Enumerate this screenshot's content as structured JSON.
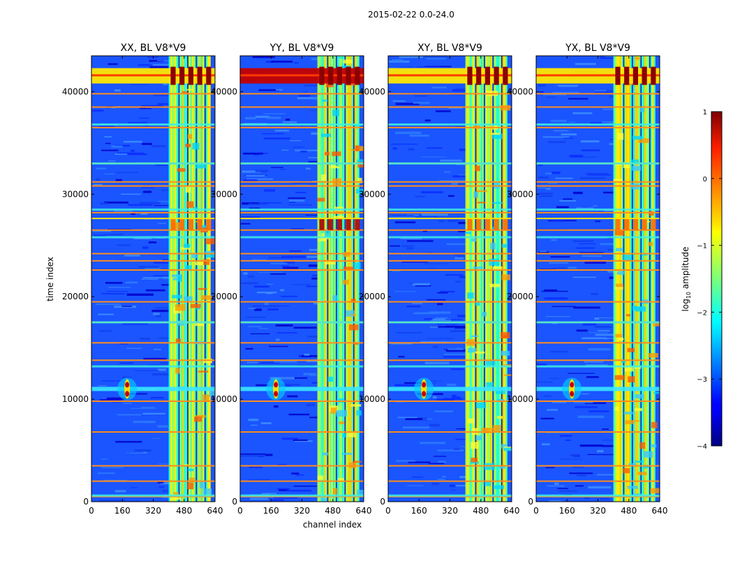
{
  "figure": {
    "suptitle": "2015-02-22 0.0-24.0"
  },
  "chart_data": {
    "type": "heatmap",
    "panels": [
      {
        "title": "XX, BL V8*V9",
        "polarization": "XX"
      },
      {
        "title": "YY, BL V8*V9",
        "polarization": "YY"
      },
      {
        "title": "XY, BL V8*V9",
        "polarization": "XY"
      },
      {
        "title": "YX, BL V8*V9",
        "polarization": "YX"
      }
    ],
    "xlabel": "channel index",
    "ylabel": "time index",
    "xlim": [
      0,
      640
    ],
    "ylim": [
      0,
      43500
    ],
    "xticks": [
      "0",
      "160",
      "320",
      "480",
      "640"
    ],
    "xtick_values": [
      0,
      160,
      320,
      480,
      640
    ],
    "yticks": [
      "0",
      "10000",
      "20000",
      "30000",
      "40000"
    ],
    "ytick_values": [
      0,
      10000,
      20000,
      30000,
      40000
    ],
    "colorbar": {
      "label": "log10 amplitude",
      "label_base": "log",
      "label_sub": "10",
      "label_rest": " amplitude",
      "range": [
        -4,
        1
      ],
      "ticks": [
        "1",
        "0",
        "−1",
        "−2",
        "−3",
        "−4"
      ],
      "tick_values": [
        1,
        0,
        -1,
        -2,
        -3,
        -4
      ],
      "colormap": "jet"
    },
    "features": {
      "bright_channel_band": [
        400,
        610
      ],
      "strong_rfi_time_range": [
        40800,
        42300
      ],
      "source_time": 11000,
      "source_channel": 185,
      "flagged_rows": [
        500,
        2000,
        3500,
        6800,
        9800,
        13800,
        15500,
        17500,
        19500,
        22600,
        23500,
        24200,
        26500,
        28200,
        30800,
        31200,
        33000,
        36500,
        38500,
        39800
      ]
    }
  }
}
